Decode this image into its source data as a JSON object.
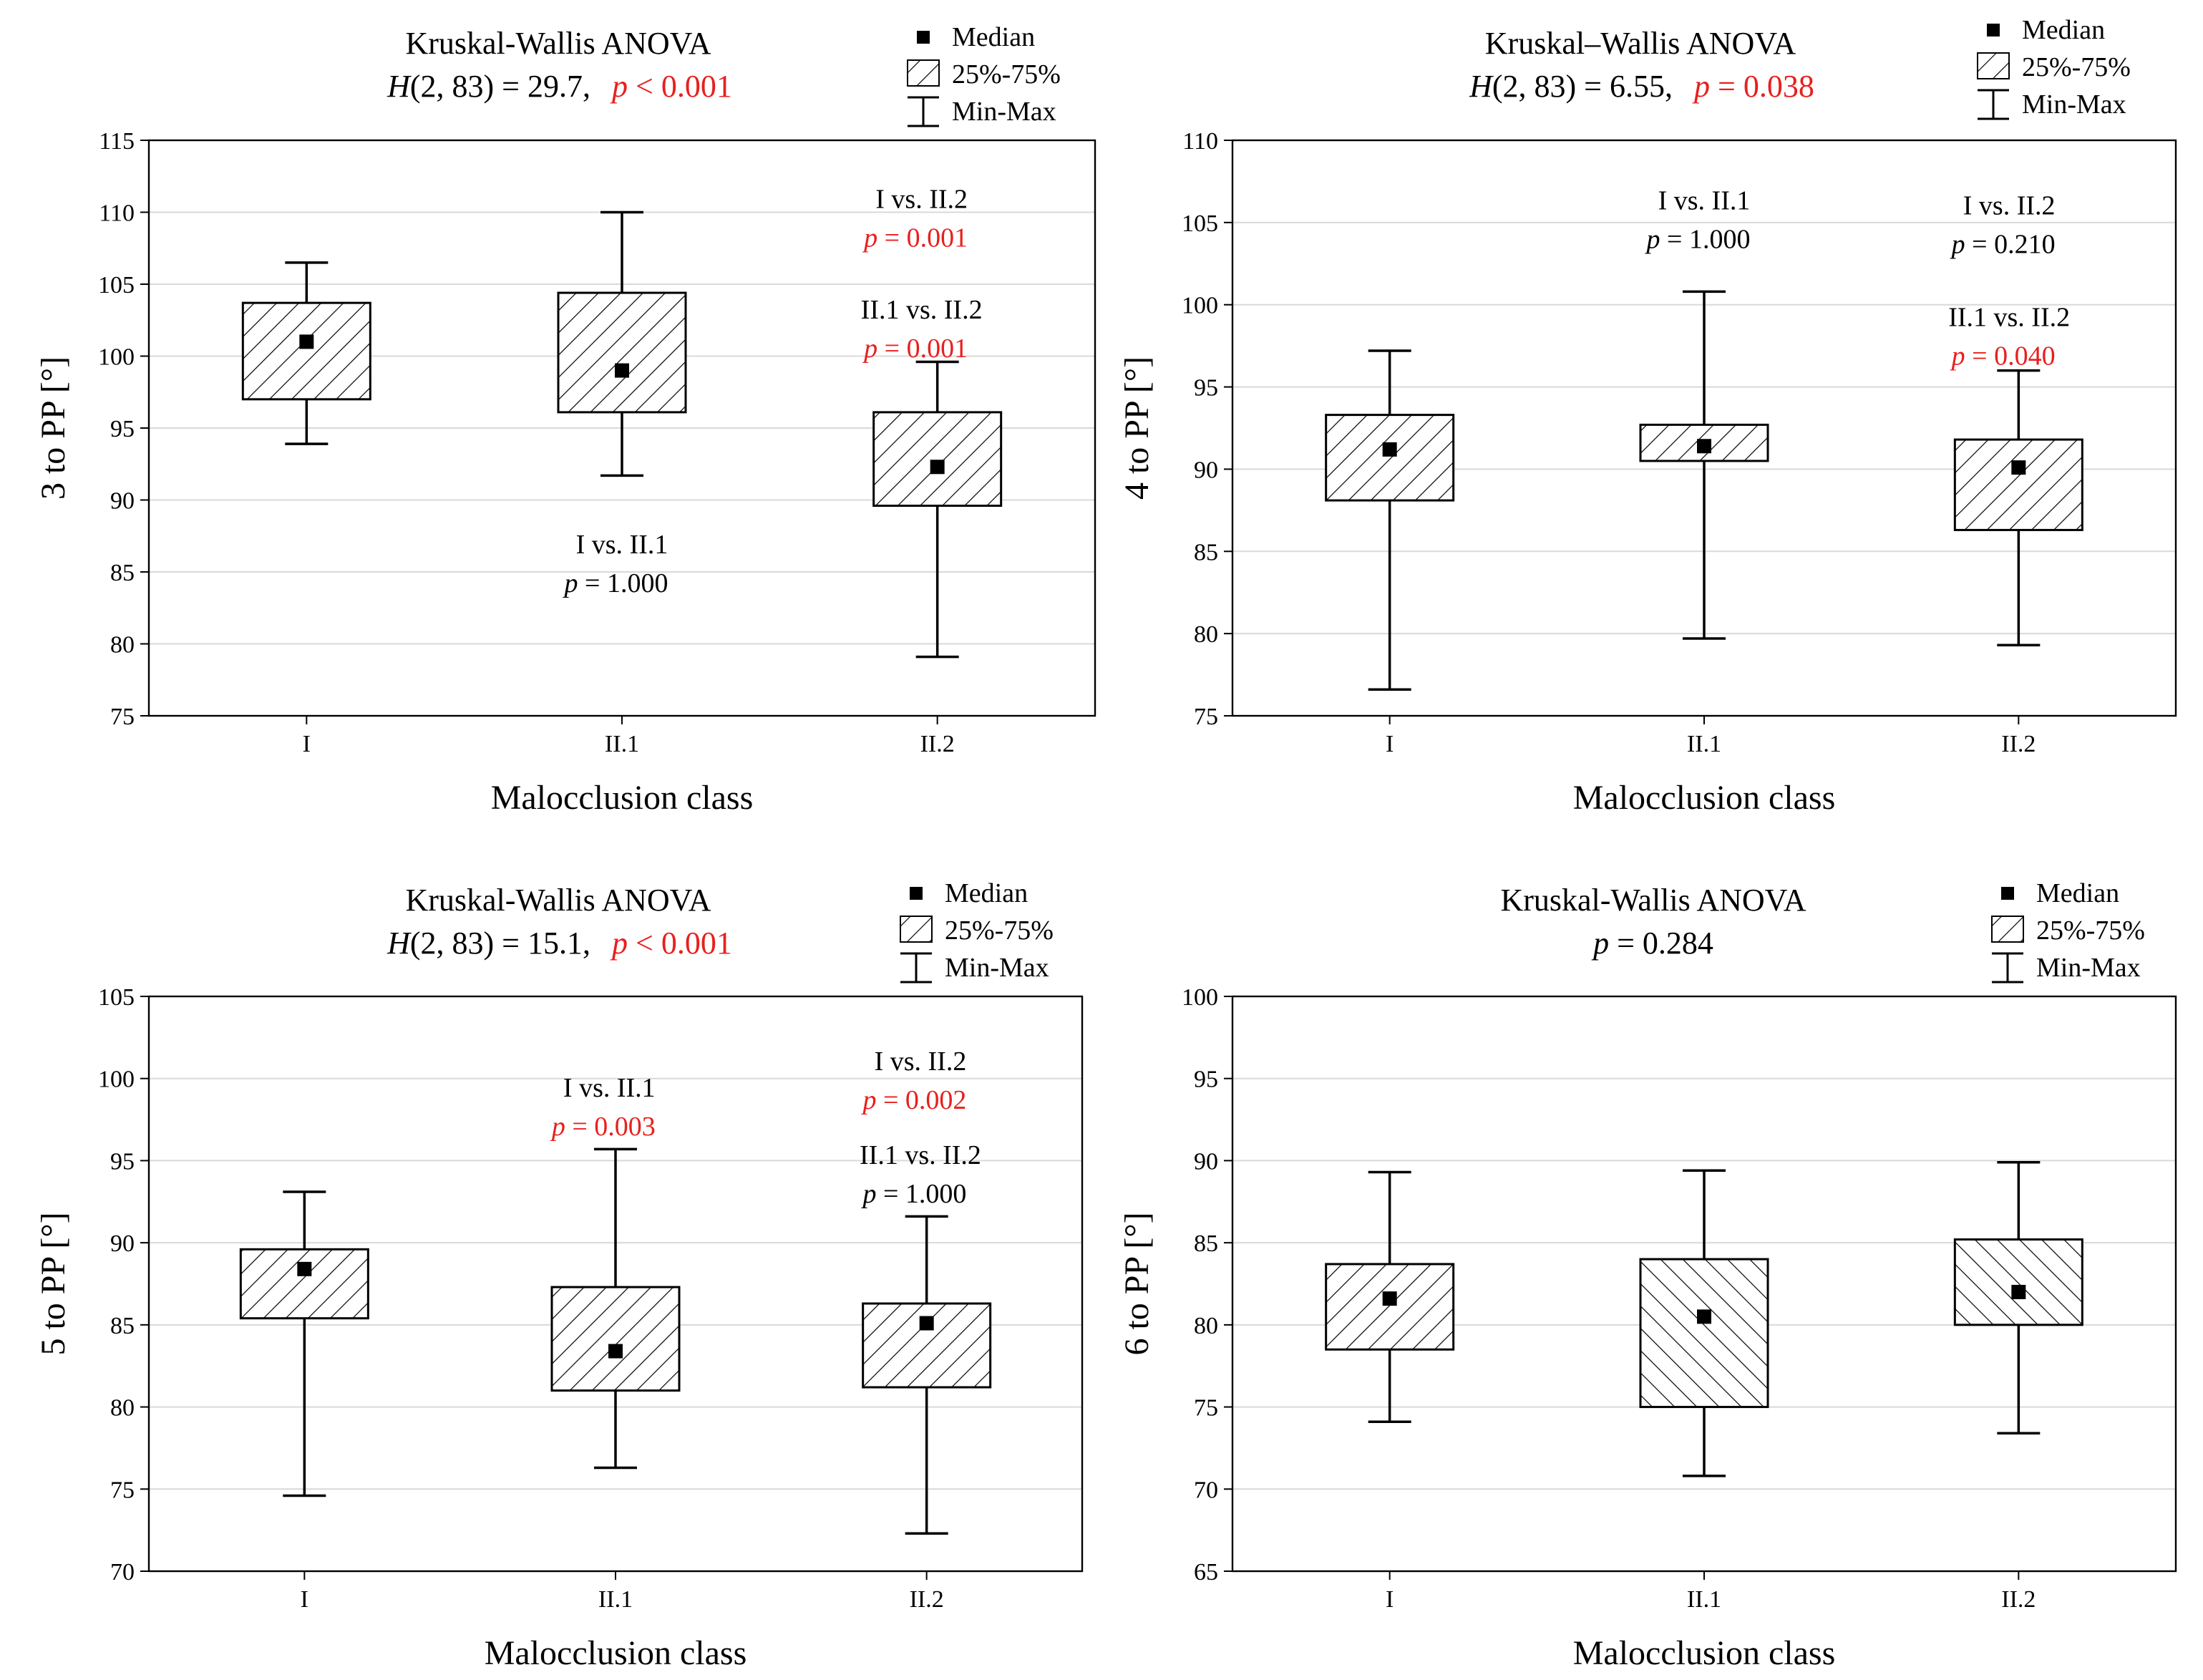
{
  "colors": {
    "text": "#000000",
    "significant": "#e8201e",
    "grid": "#d9d9d9",
    "axis": "#000000"
  },
  "legend": {
    "median": "Median",
    "box": "25%-75%",
    "whisker": "Min-Max"
  },
  "chart_data": [
    {
      "type": "box",
      "title": "Kruskal-Wallis ANOVA",
      "stat_prefix": "H",
      "stat_rest": "(2, 83) = 29.7,",
      "p_text": "p < 0.001",
      "p_significant": true,
      "ylabel": "3 to PP [°]",
      "xlabel": "Malocclusion class",
      "ylim": [
        75,
        115
      ],
      "ystep": 5,
      "hatch": "forward",
      "categories": [
        "I",
        "II.1",
        "II.2"
      ],
      "boxes": [
        {
          "category": "I",
          "min": 93.9,
          "q1": 97.0,
          "median": 101.0,
          "q3": 103.7,
          "max": 106.5
        },
        {
          "category": "II.1",
          "min": 91.7,
          "q1": 96.1,
          "median": 99.0,
          "q3": 104.4,
          "max": 110.0
        },
        {
          "category": "II.2",
          "min": 79.1,
          "q1": 89.6,
          "median": 92.3,
          "q3": 96.1,
          "max": 99.6
        }
      ],
      "comparisons": [
        {
          "label": "I vs. II.1",
          "p": "p = 1.000",
          "significant": false,
          "at_x": 1.0,
          "at_y": 86.3
        },
        {
          "label": "I vs. II.2",
          "p": "p = 0.001",
          "significant": true,
          "at_x": 1.95,
          "at_y": 110.3
        },
        {
          "label": "II.1 vs. II.2",
          "p": "p = 0.001",
          "significant": true,
          "at_x": 1.95,
          "at_y": 102.6
        }
      ]
    },
    {
      "type": "box",
      "title": "Kruskal–Wallis ANOVA",
      "stat_prefix": "H",
      "stat_rest": "(2, 83) = 6.55,",
      "p_text": "p = 0.038",
      "p_significant": true,
      "ylabel": "4 to PP [°]",
      "xlabel": "Malocclusion class",
      "ylim": [
        75,
        110
      ],
      "ystep": 5,
      "hatch": "forward",
      "categories": [
        "I",
        "II.1",
        "II.2"
      ],
      "boxes": [
        {
          "category": "I",
          "min": 76.6,
          "q1": 88.1,
          "median": 91.2,
          "q3": 93.3,
          "max": 97.2
        },
        {
          "category": "II.1",
          "min": 79.7,
          "q1": 90.5,
          "median": 91.4,
          "q3": 92.7,
          "max": 100.8
        },
        {
          "category": "II.2",
          "min": 79.3,
          "q1": 86.3,
          "median": 90.1,
          "q3": 91.8,
          "max": 96.0
        }
      ],
      "comparisons": [
        {
          "label": "I vs. II.1",
          "p": "p = 1.000",
          "significant": false,
          "at_x": 1.0,
          "at_y": 105.8
        },
        {
          "label": "I vs. II.2",
          "p": "p = 0.210",
          "significant": false,
          "at_x": 1.97,
          "at_y": 105.5
        },
        {
          "label": "II.1 vs. II.2",
          "p": "p = 0.040",
          "significant": true,
          "at_x": 1.97,
          "at_y": 98.7
        }
      ]
    },
    {
      "type": "box",
      "title": "Kruskal-Wallis ANOVA",
      "stat_prefix": "H",
      "stat_rest": "(2, 83) = 15.1,",
      "p_text": "p < 0.001",
      "p_significant": true,
      "ylabel": "5 to PP [°]",
      "xlabel": "Malocclusion class",
      "ylim": [
        70,
        105
      ],
      "ystep": 5,
      "hatch": "forward",
      "categories": [
        "I",
        "II.1",
        "II.2"
      ],
      "boxes": [
        {
          "category": "I",
          "min": 74.6,
          "q1": 85.4,
          "median": 88.4,
          "q3": 89.6,
          "max": 93.1
        },
        {
          "category": "II.1",
          "min": 76.3,
          "q1": 81.0,
          "median": 83.4,
          "q3": 87.3,
          "max": 95.7
        },
        {
          "category": "II.2",
          "min": 72.3,
          "q1": 81.2,
          "median": 85.1,
          "q3": 86.3,
          "max": 91.6
        }
      ],
      "comparisons": [
        {
          "label": "I vs. II.1",
          "p": "p = 0.003",
          "significant": true,
          "at_x": 0.98,
          "at_y": 98.9
        },
        {
          "label": "I vs. II.2",
          "p": "p = 0.002",
          "significant": true,
          "at_x": 1.98,
          "at_y": 100.5
        },
        {
          "label": "II.1 vs. II.2",
          "p": "p = 1.000",
          "significant": false,
          "at_x": 1.98,
          "at_y": 94.8
        }
      ]
    },
    {
      "type": "box",
      "title": "Kruskal-Wallis ANOVA",
      "stat_prefix": "",
      "stat_rest": "",
      "p_text": "p = 0.284",
      "p_significant": false,
      "ylabel": "6 to PP [°]",
      "xlabel": "Malocclusion class",
      "ylim": [
        65,
        100
      ],
      "ystep": 5,
      "hatch": "per-box",
      "categories": [
        "I",
        "II.1",
        "II.2"
      ],
      "boxes": [
        {
          "category": "I",
          "min": 74.1,
          "q1": 78.5,
          "median": 81.6,
          "q3": 83.7,
          "max": 89.3,
          "hatch": "forward"
        },
        {
          "category": "II.1",
          "min": 70.8,
          "q1": 75.0,
          "median": 80.5,
          "q3": 84.0,
          "max": 89.4,
          "hatch": "backward"
        },
        {
          "category": "II.2",
          "min": 73.4,
          "q1": 80.0,
          "median": 82.0,
          "q3": 85.2,
          "max": 89.9,
          "hatch": "backward"
        }
      ],
      "comparisons": []
    }
  ]
}
